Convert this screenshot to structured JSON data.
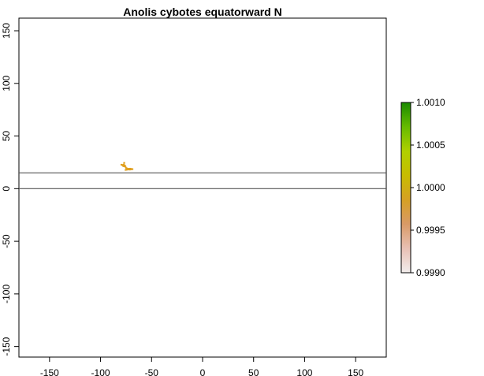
{
  "title": "Anolis cybotes equatorward N",
  "map": {
    "x_ticks": [
      -150,
      -100,
      -50,
      0,
      50,
      100,
      150
    ],
    "y_ticks": [
      -150,
      -100,
      -50,
      0,
      50,
      100,
      150
    ],
    "x_range": [
      -180,
      180
    ],
    "y_range": [
      -160,
      162
    ],
    "reference_lines_lat": [
      0,
      15
    ],
    "points_color": "#e0a020",
    "occurrence_points": [
      [
        -79.5,
        22.8
      ],
      [
        -78.8,
        22.4
      ],
      [
        -78.0,
        22.5
      ],
      [
        -77.2,
        22.9
      ],
      [
        -76.8,
        24.5
      ],
      [
        -76.2,
        22.0
      ],
      [
        -75.6,
        20.8
      ],
      [
        -74.9,
        19.6
      ],
      [
        -74.3,
        19.2
      ],
      [
        -73.6,
        19.0
      ],
      [
        -72.9,
        18.7
      ],
      [
        -72.3,
        18.6
      ],
      [
        -71.7,
        18.9
      ],
      [
        -71.1,
        19.0
      ],
      [
        -70.5,
        18.8
      ],
      [
        -69.9,
        18.6
      ],
      [
        -69.3,
        18.7
      ],
      [
        -68.8,
        18.5
      ],
      [
        -75.4,
        17.8
      ],
      [
        -74.2,
        18.0
      ],
      [
        -72.6,
        18.2
      ],
      [
        -71.4,
        18.1
      ],
      [
        -70.2,
        18.3
      ],
      [
        -77.8,
        21.6
      ],
      [
        -76.9,
        21.2
      ]
    ]
  },
  "legend": {
    "labels": [
      "1.0010",
      "1.0005",
      "1.0000",
      "0.9995",
      "0.9990"
    ],
    "gradient": [
      "#f2eded",
      "#e8c0b4",
      "#d99a66",
      "#d6a024",
      "#c8bc00",
      "#b0d000",
      "#66bb00",
      "#1a8a00"
    ]
  }
}
